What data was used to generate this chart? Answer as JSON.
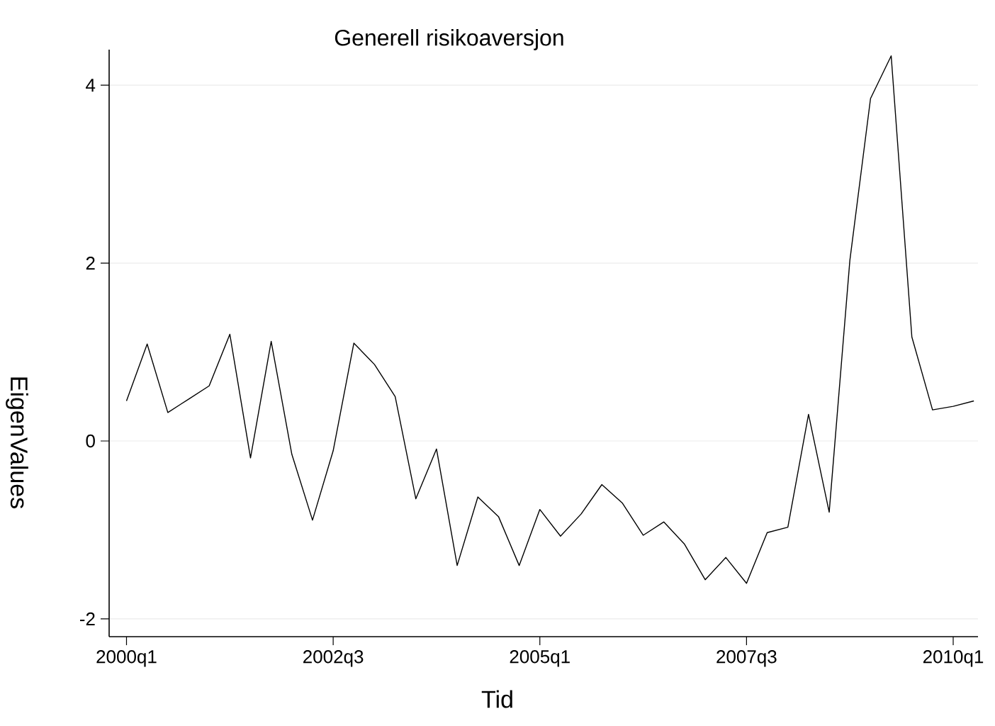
{
  "chart_data": {
    "type": "line",
    "title": "Generell risikoaversjon",
    "xlabel": "Tid",
    "ylabel": "EigenValues",
    "categories": [
      "2000q1",
      null,
      null,
      null,
      null,
      null,
      null,
      null,
      null,
      null,
      "2002q3",
      null,
      null,
      null,
      null,
      null,
      null,
      null,
      null,
      null,
      "2005q1",
      null,
      null,
      null,
      null,
      null,
      null,
      null,
      null,
      null,
      "2007q3",
      null,
      null,
      null,
      null,
      null,
      null,
      null,
      null,
      null,
      "2010q1",
      null
    ],
    "series": [
      {
        "color": "#000000",
        "values": [
          0.45,
          1.09,
          0.32,
          0.47,
          0.62,
          1.2,
          -0.19,
          1.12,
          -0.15,
          -0.89,
          -0.11,
          1.1,
          0.86,
          0.5,
          -0.65,
          -0.09,
          -1.4,
          -0.63,
          -0.85,
          -1.4,
          -0.77,
          -1.07,
          -0.82,
          -0.49,
          -0.7,
          -1.06,
          -0.91,
          -1.16,
          -1.56,
          -1.31,
          -1.6,
          -1.03,
          -0.97,
          0.3,
          -0.8,
          2.03,
          3.85,
          4.33,
          1.17,
          0.35,
          0.39,
          0.45
        ]
      }
    ],
    "ylim": [
      -2.2,
      4.4
    ],
    "yticks": [
      -2,
      0,
      2,
      4
    ],
    "grid": "y"
  }
}
